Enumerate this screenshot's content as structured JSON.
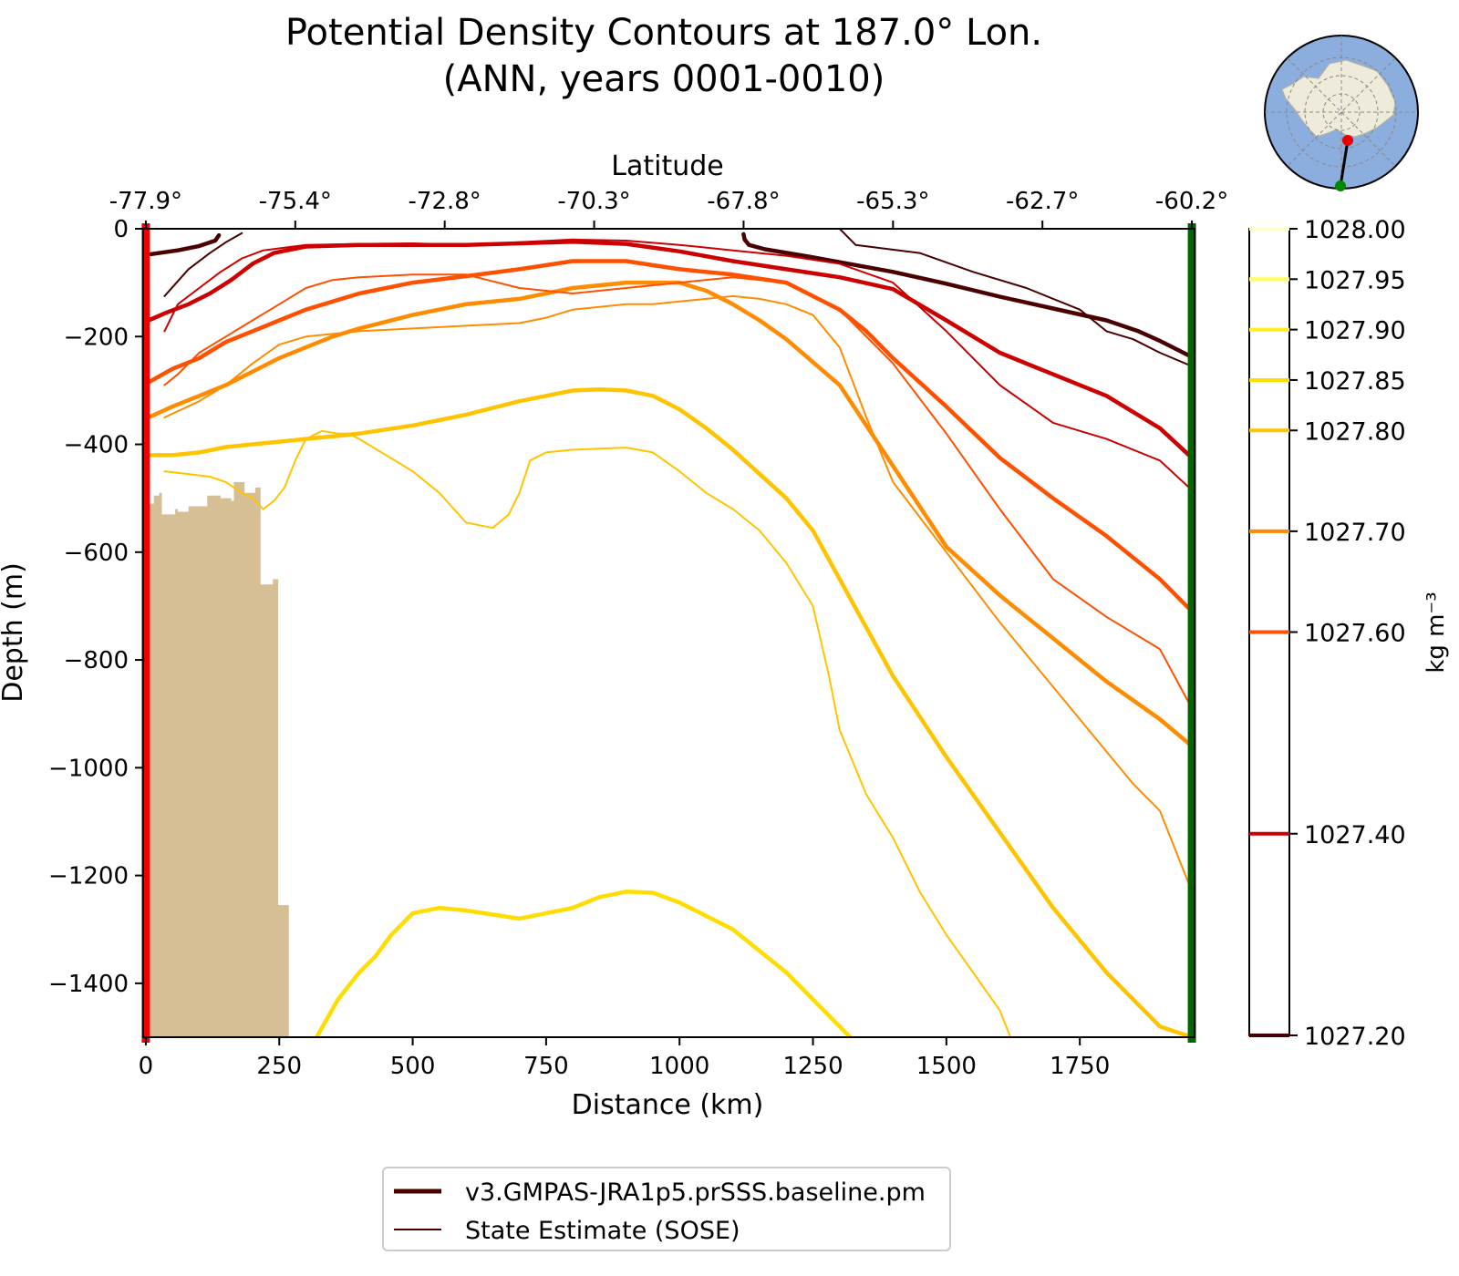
{
  "chart_data": {
    "type": "line",
    "title": "Potential Density Contours at 187.0° Lon.",
    "subtitle": "(ANN, years 0001-0010)",
    "xlabel": "Distance (km)",
    "ylabel": "Depth (m)",
    "top_axis_label": "Latitude",
    "xlim": [
      -5,
      1965
    ],
    "ylim": [
      -1500,
      0
    ],
    "x_ticks": [
      0,
      250,
      500,
      750,
      1000,
      1250,
      1500,
      1750
    ],
    "y_ticks": [
      0,
      -200,
      -400,
      -600,
      -800,
      -1000,
      -1200,
      -1400
    ],
    "y_tick_labels": [
      "0",
      "−200",
      "−400",
      "−600",
      "−800",
      "−1000",
      "−1200",
      "−1400"
    ],
    "lat_ticks": [
      {
        "x": 0,
        "label": "-77.9°"
      },
      {
        "x": 280,
        "label": "-75.4°"
      },
      {
        "x": 560,
        "label": "-72.8°"
      },
      {
        "x": 840,
        "label": "-70.3°"
      },
      {
        "x": 1120,
        "label": "-67.8°"
      },
      {
        "x": 1400,
        "label": "-65.3°"
      },
      {
        "x": 1680,
        "label": "-62.7°"
      },
      {
        "x": 1960,
        "label": "-60.2°"
      }
    ],
    "colorbar": {
      "label": "kg m⁻³",
      "range": [
        1027.2,
        1028.0
      ],
      "levels": [
        {
          "value": 1028.0,
          "label": "1028.00",
          "color": "#ffffcc"
        },
        {
          "value": 1027.95,
          "label": "1027.95",
          "color": "#ffff55"
        },
        {
          "value": 1027.9,
          "label": "1027.90",
          "color": "#ffee22"
        },
        {
          "value": 1027.85,
          "label": "1027.85",
          "color": "#ffdd00"
        },
        {
          "value": 1027.8,
          "label": "1027.80",
          "color": "#ffc400"
        },
        {
          "value": 1027.7,
          "label": "1027.70",
          "color": "#ff8c00"
        },
        {
          "value": 1027.6,
          "label": "1027.60",
          "color": "#ff5000"
        },
        {
          "value": 1027.4,
          "label": "1027.40",
          "color": "#cc0000"
        },
        {
          "value": 1027.2,
          "label": "1027.20",
          "color": "#4a0000"
        }
      ]
    },
    "legend": {
      "placement": "below",
      "entries": [
        {
          "label": "v3.GMPAS-JRA1p5.prSSS.baseline.pm",
          "style": "thick"
        },
        {
          "label": "State Estimate (SOSE)",
          "style": "thin"
        }
      ]
    },
    "section_endpoints": {
      "start_color": "#ee0000",
      "end_color": "#006600"
    },
    "bathymetry": {
      "color": "#d6bf95",
      "x": [
        5,
        5,
        15,
        15,
        25,
        25,
        30,
        30,
        55,
        55,
        60,
        60,
        80,
        80,
        115,
        115,
        140,
        140,
        160,
        160,
        165,
        165,
        185,
        185,
        205,
        205,
        215,
        215,
        238,
        238,
        248,
        248,
        268,
        268
      ],
      "y": [
        -1500,
        -510,
        -510,
        -495,
        -495,
        -490,
        -490,
        -530,
        -530,
        -520,
        -520,
        -525,
        -525,
        -515,
        -515,
        -495,
        -495,
        -500,
        -500,
        -505,
        -505,
        -470,
        -470,
        -490,
        -490,
        -480,
        -480,
        -660,
        -660,
        -650,
        -650,
        -1255,
        -1255,
        -1240
      ]
    },
    "series": [
      {
        "source": "model",
        "level": "1027.20",
        "color": "#4a0000",
        "x": [
          10,
          60,
          100,
          130,
          137
        ],
        "y": [
          -47,
          -40,
          -32,
          -22,
          -12
        ]
      },
      {
        "source": "model",
        "level": "1027.20",
        "color": "#4a0000",
        "x": [
          1120,
          1122,
          1130,
          1160,
          1250,
          1400,
          1500,
          1600,
          1700,
          1800,
          1860,
          1900,
          1960
        ],
        "y": [
          -10,
          -20,
          -30,
          -38,
          -53,
          -80,
          -102,
          -126,
          -148,
          -170,
          -190,
          -208,
          -238
        ]
      },
      {
        "source": "model",
        "level": "1027.40",
        "color": "#cc0000",
        "x": [
          5,
          40,
          80,
          120,
          160,
          200,
          240,
          300,
          400,
          500,
          600,
          700,
          800,
          900,
          1000,
          1100,
          1200,
          1300,
          1400,
          1500,
          1600,
          1700,
          1800,
          1900,
          1960
        ],
        "y": [
          -170,
          -155,
          -140,
          -120,
          -95,
          -65,
          -45,
          -33,
          -30,
          -30,
          -30,
          -27,
          -24,
          -28,
          -42,
          -60,
          -75,
          -90,
          -112,
          -170,
          -230,
          -270,
          -310,
          -370,
          -425
        ]
      },
      {
        "source": "model",
        "level": "1027.60",
        "color": "#ff5000",
        "x": [
          5,
          50,
          100,
          150,
          200,
          250,
          300,
          350,
          400,
          500,
          600,
          700,
          800,
          900,
          1000,
          1100,
          1200,
          1300,
          1350,
          1400,
          1500,
          1600,
          1700,
          1800,
          1900,
          1960
        ],
        "y": [
          -285,
          -260,
          -240,
          -210,
          -190,
          -170,
          -150,
          -135,
          -120,
          -100,
          -88,
          -75,
          -60,
          -60,
          -75,
          -85,
          -100,
          -150,
          -190,
          -240,
          -330,
          -425,
          -500,
          -570,
          -650,
          -710
        ]
      },
      {
        "source": "model",
        "level": "1027.70",
        "color": "#ff8c00",
        "x": [
          5,
          50,
          100,
          150,
          200,
          250,
          300,
          350,
          400,
          500,
          600,
          700,
          800,
          900,
          1000,
          1050,
          1100,
          1150,
          1200,
          1300,
          1400,
          1500,
          1600,
          1700,
          1800,
          1900,
          1960
        ],
        "y": [
          -350,
          -330,
          -310,
          -290,
          -265,
          -240,
          -220,
          -200,
          -185,
          -160,
          -140,
          -130,
          -110,
          -100,
          -100,
          -115,
          -140,
          -170,
          -205,
          -290,
          -440,
          -590,
          -680,
          -760,
          -840,
          -910,
          -960
        ]
      },
      {
        "source": "model",
        "level": "1027.80",
        "color": "#ffc400",
        "x": [
          5,
          50,
          100,
          150,
          200,
          250,
          300,
          350,
          400,
          500,
          600,
          700,
          750,
          800,
          850,
          900,
          950,
          1000,
          1050,
          1100,
          1150,
          1200,
          1250,
          1300,
          1400,
          1500,
          1600,
          1700,
          1800,
          1900,
          1960
        ],
        "y": [
          -420,
          -420,
          -415,
          -405,
          -400,
          -395,
          -390,
          -385,
          -380,
          -365,
          -345,
          -320,
          -310,
          -300,
          -298,
          -300,
          -310,
          -335,
          -370,
          -410,
          -455,
          -500,
          -560,
          -650,
          -830,
          -980,
          -1120,
          -1260,
          -1380,
          -1480,
          -1500
        ]
      },
      {
        "source": "model",
        "level": "1027.85",
        "color": "#ffdd00",
        "x": [
          320,
          360,
          400,
          430,
          460,
          500,
          550,
          600,
          700,
          800,
          850,
          900,
          950,
          1000,
          1100,
          1200,
          1250,
          1300,
          1320
        ],
        "y": [
          -1500,
          -1430,
          -1380,
          -1350,
          -1310,
          -1270,
          -1260,
          -1265,
          -1280,
          -1260,
          -1240,
          -1230,
          -1232,
          -1250,
          -1300,
          -1380,
          -1430,
          -1480,
          -1500
        ]
      },
      {
        "source": "sose",
        "level": "1027.20",
        "color": "#4a0000",
        "x": [
          35,
          80,
          120,
          150,
          180
        ],
        "y": [
          -125,
          -75,
          -45,
          -25,
          -8
        ]
      },
      {
        "source": "sose",
        "level": "1027.20",
        "color": "#4a0000",
        "x": [
          1300,
          1330,
          1450,
          1550,
          1650,
          1750,
          1800,
          1850,
          1900,
          1960
        ],
        "y": [
          0,
          -30,
          -45,
          -80,
          -110,
          -150,
          -190,
          -205,
          -230,
          -255
        ]
      },
      {
        "source": "sose",
        "level": "1027.40",
        "color": "#cc0000",
        "x": [
          35,
          60,
          100,
          140,
          180,
          220,
          300,
          400,
          500,
          600,
          700,
          800,
          900,
          1000,
          1100,
          1200,
          1300,
          1400,
          1450,
          1500,
          1600,
          1700,
          1800,
          1900,
          1960
        ],
        "y": [
          -190,
          -140,
          -110,
          -80,
          -55,
          -40,
          -30,
          -28,
          -27,
          -30,
          -25,
          -20,
          -22,
          -30,
          -40,
          -50,
          -65,
          -100,
          -145,
          -190,
          -290,
          -360,
          -390,
          -430,
          -485
        ]
      },
      {
        "source": "sose",
        "level": "1027.60",
        "color": "#ff5000",
        "x": [
          35,
          60,
          100,
          150,
          200,
          250,
          300,
          350,
          400,
          500,
          600,
          700,
          800,
          900,
          1000,
          1100,
          1200,
          1300,
          1400,
          1500,
          1600,
          1700,
          1800,
          1900,
          1960
        ],
        "y": [
          -290,
          -270,
          -230,
          -200,
          -170,
          -140,
          -110,
          -95,
          -90,
          -85,
          -85,
          -110,
          -120,
          -110,
          -100,
          -90,
          -100,
          -150,
          -250,
          -380,
          -520,
          -650,
          -720,
          -780,
          -890
        ]
      },
      {
        "source": "sose",
        "level": "1027.70",
        "color": "#ff8c00",
        "x": [
          35,
          100,
          150,
          200,
          250,
          300,
          400,
          500,
          600,
          700,
          750,
          800,
          850,
          900,
          950,
          1000,
          1050,
          1100,
          1150,
          1200,
          1250,
          1300,
          1350,
          1400,
          1500,
          1600,
          1700,
          1800,
          1850,
          1900,
          1960
        ],
        "y": [
          -350,
          -320,
          -290,
          -250,
          -215,
          -200,
          -190,
          -185,
          -180,
          -175,
          -165,
          -150,
          -145,
          -140,
          -140,
          -135,
          -130,
          -125,
          -130,
          -140,
          -160,
          -220,
          -350,
          -470,
          -600,
          -730,
          -850,
          -970,
          -1030,
          -1080,
          -1230
        ]
      },
      {
        "source": "sose",
        "level": "1027.80",
        "color": "#ffc400",
        "x": [
          35,
          80,
          120,
          150,
          180,
          200,
          220,
          240,
          260,
          280,
          300,
          330,
          360,
          380,
          400,
          450,
          500,
          550,
          600,
          650,
          680,
          700,
          720,
          750,
          800,
          850,
          900,
          950,
          1000,
          1050,
          1100,
          1150,
          1200,
          1250,
          1280,
          1300,
          1350,
          1400,
          1450,
          1500,
          1550,
          1600,
          1620
        ],
        "y": [
          -450,
          -455,
          -460,
          -470,
          -490,
          -500,
          -520,
          -505,
          -480,
          -430,
          -390,
          -375,
          -380,
          -380,
          -390,
          -420,
          -450,
          -490,
          -545,
          -555,
          -530,
          -490,
          -430,
          -415,
          -410,
          -408,
          -406,
          -415,
          -450,
          -490,
          -520,
          -560,
          -620,
          -700,
          -830,
          -930,
          -1050,
          -1130,
          -1230,
          -1310,
          -1380,
          -1450,
          -1500
        ]
      }
    ],
    "inset_map": {
      "caption": ""
    }
  }
}
